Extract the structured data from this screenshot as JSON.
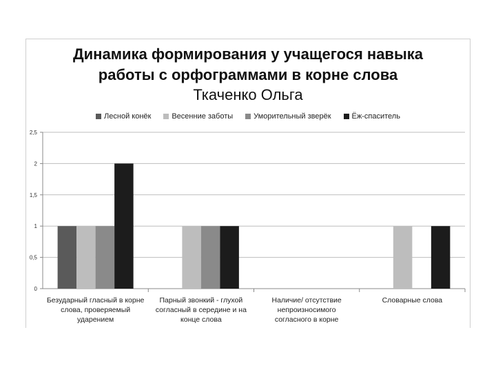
{
  "chart_data": {
    "type": "bar",
    "title_line1": "Динамика формирования у учащегося навыка",
    "title_line2": "работы с орфограммами в корне слова",
    "subtitle": "Ткаченко Ольга",
    "categories": [
      [
        "Безударный гласный в корне",
        "слова, проверяемый",
        "ударением"
      ],
      [
        "Парный звонкий - глухой",
        "согласный в середине и на",
        "конце слова"
      ],
      [
        "Наличие/ отсутствие",
        "непроизносимого",
        "согласного в корне"
      ],
      [
        "Словарные слова"
      ]
    ],
    "series": [
      {
        "name": "Лесной конёк",
        "color": "#5a5a5a",
        "values": [
          1,
          0,
          0,
          0
        ]
      },
      {
        "name": "Весенние заботы",
        "color": "#bdbdbd",
        "values": [
          1,
          1,
          0,
          1
        ]
      },
      {
        "name": "Уморительный зверёк",
        "color": "#8a8a8a",
        "values": [
          1,
          1,
          0,
          0
        ]
      },
      {
        "name": "Ёж-спаситель",
        "color": "#1c1c1c",
        "values": [
          2,
          1,
          0,
          1
        ]
      }
    ],
    "ylim": [
      0,
      2.5
    ],
    "yticks": [
      "0",
      "0,5",
      "1",
      "1,5",
      "2",
      "2,5"
    ],
    "grid": true,
    "legend_position": "top"
  }
}
